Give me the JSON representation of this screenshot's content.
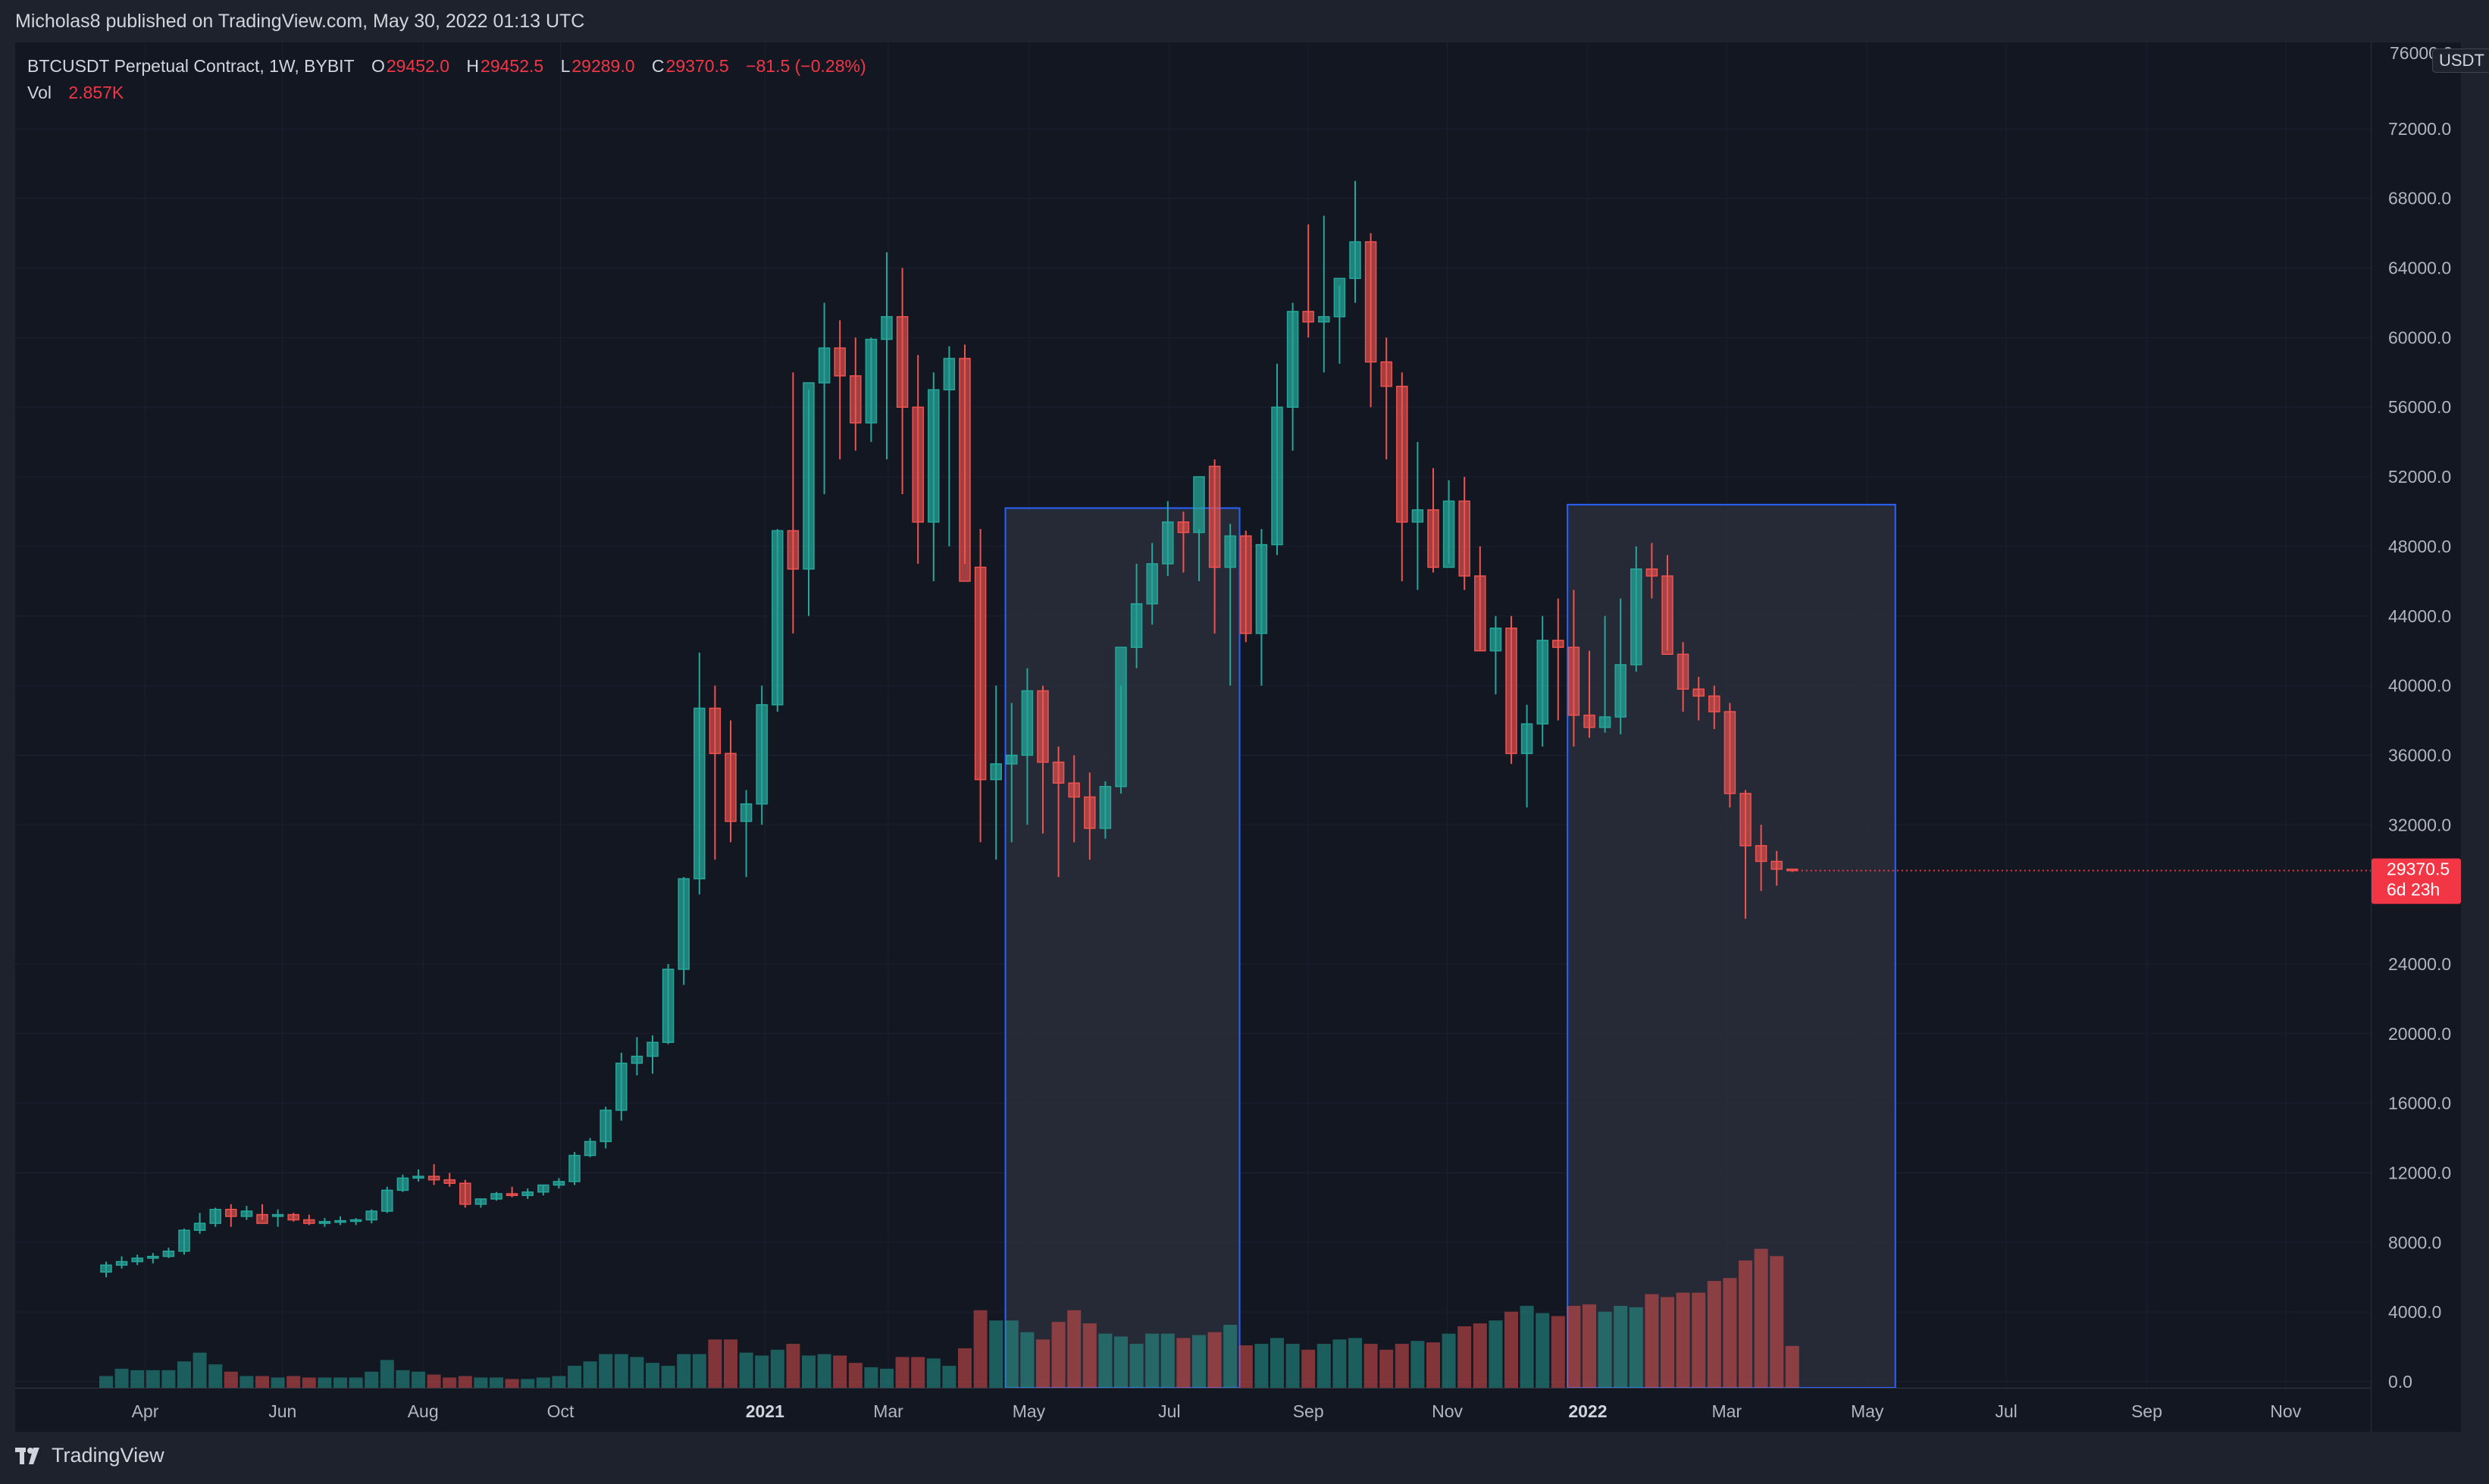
{
  "header": {
    "published_text": "Micholas8 published on TradingView.com, May 30, 2022 01:13 UTC"
  },
  "legend": {
    "symbol": "BTCUSDT Perpetual Contract, 1W, BYBIT",
    "o_label": "O",
    "o_value": "29452.0",
    "h_label": "H",
    "h_value": "29452.5",
    "l_label": "L",
    "l_value": "29289.0",
    "c_label": "C",
    "c_value": "29370.5",
    "change": "−81.5 (−0.28%)",
    "vol_label": "Vol",
    "vol_value": "2.857K"
  },
  "price_axis": {
    "currency": "USDT",
    "last_price": "29370.5",
    "countdown": "6d 23h",
    "top_label_partial": "76000.0"
  },
  "footer": {
    "brand": "TradingView"
  },
  "colors": {
    "up": "#26a69a",
    "down": "#ef5350",
    "background": "#131722",
    "box_stroke": "#2962ff",
    "box_fill": "#2a2e39",
    "text": "#b2b5be"
  },
  "chart_data": {
    "type": "candlestick",
    "title": "BTCUSDT Perpetual Contract, 1W, BYBIT",
    "interval": "1W",
    "ylim": [
      0,
      76000
    ],
    "y_ticks": [
      0,
      4000,
      8000,
      12000,
      16000,
      20000,
      24000,
      32000,
      36000,
      40000,
      44000,
      48000,
      52000,
      56000,
      60000,
      64000,
      68000,
      72000
    ],
    "y_tick_labels": [
      "0.0",
      "4000.0",
      "8000.0",
      "12000.0",
      "16000.0",
      "20000.0",
      "24000.0",
      "32000.0",
      "36000.0",
      "40000.0",
      "44000.0",
      "48000.0",
      "52000.0",
      "56000.0",
      "60000.0",
      "64000.0",
      "68000.0",
      "72000.0"
    ],
    "x_labels": [
      {
        "text": "Apr",
        "week": 2.5,
        "bold": false
      },
      {
        "text": "Jun",
        "week": 11.3,
        "bold": false
      },
      {
        "text": "Aug",
        "week": 20.3,
        "bold": false
      },
      {
        "text": "Oct",
        "week": 29.1,
        "bold": false
      },
      {
        "text": "2021",
        "week": 42.2,
        "bold": true
      },
      {
        "text": "Mar",
        "week": 50.1,
        "bold": false
      },
      {
        "text": "May",
        "week": 59.1,
        "bold": false
      },
      {
        "text": "Jul",
        "week": 68.1,
        "bold": false
      },
      {
        "text": "Sep",
        "week": 77.0,
        "bold": false
      },
      {
        "text": "Nov",
        "week": 85.9,
        "bold": false
      },
      {
        "text": "2022",
        "week": 94.9,
        "bold": true
      },
      {
        "text": "Mar",
        "week": 103.8,
        "bold": false
      },
      {
        "text": "May",
        "week": 112.8,
        "bold": false
      },
      {
        "text": "Jul",
        "week": 121.7,
        "bold": false
      },
      {
        "text": "Sep",
        "week": 130.7,
        "bold": false
      },
      {
        "text": "Nov",
        "week": 139.6,
        "bold": false
      }
    ],
    "volume_scale_max": 20000,
    "rectangles": [
      {
        "from_week": 57.6,
        "to_week": 72.6,
        "top": 50200,
        "bottom": 0
      },
      {
        "from_week": 93.6,
        "to_week": 114.6,
        "top": 50400,
        "bottom": 0
      }
    ],
    "ohlcv": [
      [
        6300,
        6900,
        6000,
        6700,
        800
      ],
      [
        6700,
        7200,
        6500,
        6900,
        1300
      ],
      [
        6900,
        7300,
        6700,
        7100,
        1200
      ],
      [
        7100,
        7400,
        6800,
        7200,
        1200
      ],
      [
        7200,
        7700,
        7100,
        7500,
        1200
      ],
      [
        7500,
        8800,
        7300,
        8700,
        1800
      ],
      [
        8700,
        9700,
        8500,
        9100,
        2400
      ],
      [
        9100,
        10000,
        8900,
        9900,
        1600
      ],
      [
        9900,
        10200,
        8900,
        9500,
        1100
      ],
      [
        9500,
        10100,
        9300,
        9800,
        800
      ],
      [
        9600,
        10200,
        9300,
        9100,
        800
      ],
      [
        9500,
        9900,
        8900,
        9600,
        700
      ],
      [
        9600,
        9700,
        9200,
        9300,
        800
      ],
      [
        9300,
        9600,
        9000,
        9100,
        700
      ],
      [
        9100,
        9400,
        8900,
        9200,
        700
      ],
      [
        9200,
        9500,
        9000,
        9250,
        700
      ],
      [
        9250,
        9400,
        9000,
        9300,
        700
      ],
      [
        9300,
        9900,
        9100,
        9800,
        1100
      ],
      [
        9800,
        11200,
        9700,
        11000,
        1900
      ],
      [
        11000,
        11900,
        10900,
        11700,
        1200
      ],
      [
        11700,
        12200,
        11500,
        11800,
        1100
      ],
      [
        11800,
        12500,
        11300,
        11600,
        900
      ],
      [
        11600,
        12000,
        11200,
        11400,
        700
      ],
      [
        11400,
        11600,
        10000,
        10200,
        800
      ],
      [
        10200,
        10500,
        10000,
        10500,
        700
      ],
      [
        10500,
        10900,
        10400,
        10800,
        700
      ],
      [
        10800,
        11200,
        10600,
        10700,
        600
      ],
      [
        10700,
        11100,
        10500,
        10900,
        600
      ],
      [
        10900,
        11300,
        10700,
        11300,
        700
      ],
      [
        11300,
        11700,
        11100,
        11500,
        800
      ],
      [
        11500,
        13200,
        11300,
        13000,
        1500
      ],
      [
        13000,
        14000,
        12900,
        13800,
        1800
      ],
      [
        13800,
        15800,
        13400,
        15600,
        2300
      ],
      [
        15600,
        18900,
        15000,
        18300,
        2300
      ],
      [
        18300,
        19800,
        17600,
        18700,
        2100
      ],
      [
        18700,
        19900,
        17700,
        19500,
        1700
      ],
      [
        19500,
        24000,
        19400,
        23700,
        1500
      ],
      [
        23700,
        29000,
        22800,
        28900,
        2300
      ],
      [
        28900,
        41900,
        28000,
        38700,
        2300
      ],
      [
        38700,
        40000,
        30000,
        36100,
        3300
      ],
      [
        36100,
        38000,
        31000,
        32200,
        3300
      ],
      [
        32200,
        34000,
        29000,
        33200,
        2400
      ],
      [
        33200,
        40000,
        32000,
        38900,
        2200
      ],
      [
        38900,
        49000,
        38500,
        48900,
        2600
      ],
      [
        48900,
        58000,
        43000,
        46700,
        3000
      ],
      [
        46700,
        57000,
        44000,
        57400,
        2200
      ],
      [
        57400,
        62000,
        51000,
        59400,
        2300
      ],
      [
        59400,
        61000,
        53000,
        57800,
        2200
      ],
      [
        57800,
        60000,
        53500,
        55100,
        1700
      ],
      [
        55100,
        60000,
        54000,
        59900,
        1400
      ],
      [
        59900,
        64900,
        53000,
        61200,
        1300
      ],
      [
        61200,
        64000,
        51000,
        56000,
        2100
      ],
      [
        56000,
        59000,
        47000,
        49400,
        2100
      ],
      [
        49400,
        58000,
        46000,
        57000,
        2000
      ],
      [
        57000,
        59500,
        48000,
        58800,
        1500
      ],
      [
        58800,
        59600,
        47000,
        46000,
        2700
      ],
      [
        46800,
        49000,
        31000,
        34600,
        5300
      ],
      [
        34600,
        40000,
        30000,
        35500,
        4600
      ],
      [
        35500,
        39000,
        31000,
        36000,
        4600
      ],
      [
        36000,
        41000,
        32000,
        39700,
        3800
      ],
      [
        39700,
        40000,
        31500,
        35600,
        3300
      ],
      [
        35600,
        36500,
        29000,
        34400,
        4500
      ],
      [
        34400,
        36000,
        31000,
        33600,
        5300
      ],
      [
        33600,
        35000,
        30000,
        31800,
        4400
      ],
      [
        31800,
        34500,
        31200,
        34200,
        3700
      ],
      [
        34200,
        40000,
        33800,
        42200,
        3500
      ],
      [
        42200,
        47000,
        41000,
        44700,
        3000
      ],
      [
        44700,
        48200,
        43500,
        47000,
        3700
      ],
      [
        47000,
        50600,
        46300,
        49400,
        3700
      ],
      [
        49400,
        50000,
        46500,
        48800,
        3400
      ],
      [
        48800,
        49000,
        46000,
        52000,
        3600
      ],
      [
        52600,
        53000,
        43000,
        46800,
        3800
      ],
      [
        46800,
        49300,
        40000,
        48600,
        4300
      ],
      [
        48600,
        48900,
        42500,
        43000,
        2900
      ],
      [
        43000,
        49000,
        40000,
        48100,
        3000
      ],
      [
        48100,
        58500,
        47500,
        56000,
        3400
      ],
      [
        56000,
        62000,
        53500,
        61500,
        3000
      ],
      [
        61500,
        66500,
        60000,
        60900,
        2600
      ],
      [
        60900,
        67000,
        58000,
        61200,
        3000
      ],
      [
        61200,
        63000,
        58500,
        63400,
        3300
      ],
      [
        63400,
        69000,
        62000,
        65500,
        3400
      ],
      [
        65500,
        66000,
        56000,
        58600,
        3000
      ],
      [
        58600,
        60000,
        53000,
        57200,
        2600
      ],
      [
        57200,
        58000,
        46000,
        49400,
        3000
      ],
      [
        49400,
        54000,
        45500,
        50100,
        3200
      ],
      [
        50100,
        52500,
        46500,
        46800,
        3100
      ],
      [
        46800,
        51800,
        47000,
        50600,
        3700
      ],
      [
        50600,
        52000,
        45500,
        46300,
        4200
      ],
      [
        46300,
        48000,
        42000,
        42000,
        4400
      ],
      [
        42000,
        44000,
        39500,
        43300,
        4600
      ],
      [
        43300,
        44000,
        35500,
        36100,
        5200
      ],
      [
        36100,
        38900,
        33000,
        37800,
        5600
      ],
      [
        37800,
        44000,
        36500,
        42600,
        5100
      ],
      [
        42600,
        45000,
        38000,
        42200,
        4900
      ],
      [
        42200,
        45500,
        36500,
        38300,
        5600
      ],
      [
        38300,
        42000,
        37000,
        37600,
        5700
      ],
      [
        37600,
        44000,
        37300,
        38200,
        5200
      ],
      [
        38200,
        45000,
        37200,
        41200,
        5600
      ],
      [
        41200,
        48000,
        40800,
        46700,
        5500
      ],
      [
        46700,
        48200,
        45000,
        46300,
        6400
      ],
      [
        46300,
        47500,
        42000,
        41800,
        6200
      ],
      [
        41800,
        42500,
        38500,
        39800,
        6500
      ],
      [
        39800,
        40500,
        38000,
        39400,
        6500
      ],
      [
        39400,
        40000,
        37500,
        38500,
        7300
      ],
      [
        38500,
        39000,
        33000,
        33800,
        7500
      ],
      [
        33800,
        34000,
        26600,
        30800,
        8700
      ],
      [
        30800,
        32000,
        28200,
        29900,
        9500
      ],
      [
        29900,
        30500,
        28500,
        29452,
        9000
      ],
      [
        29452,
        29452.5,
        29289,
        29370.5,
        2857
      ]
    ]
  }
}
